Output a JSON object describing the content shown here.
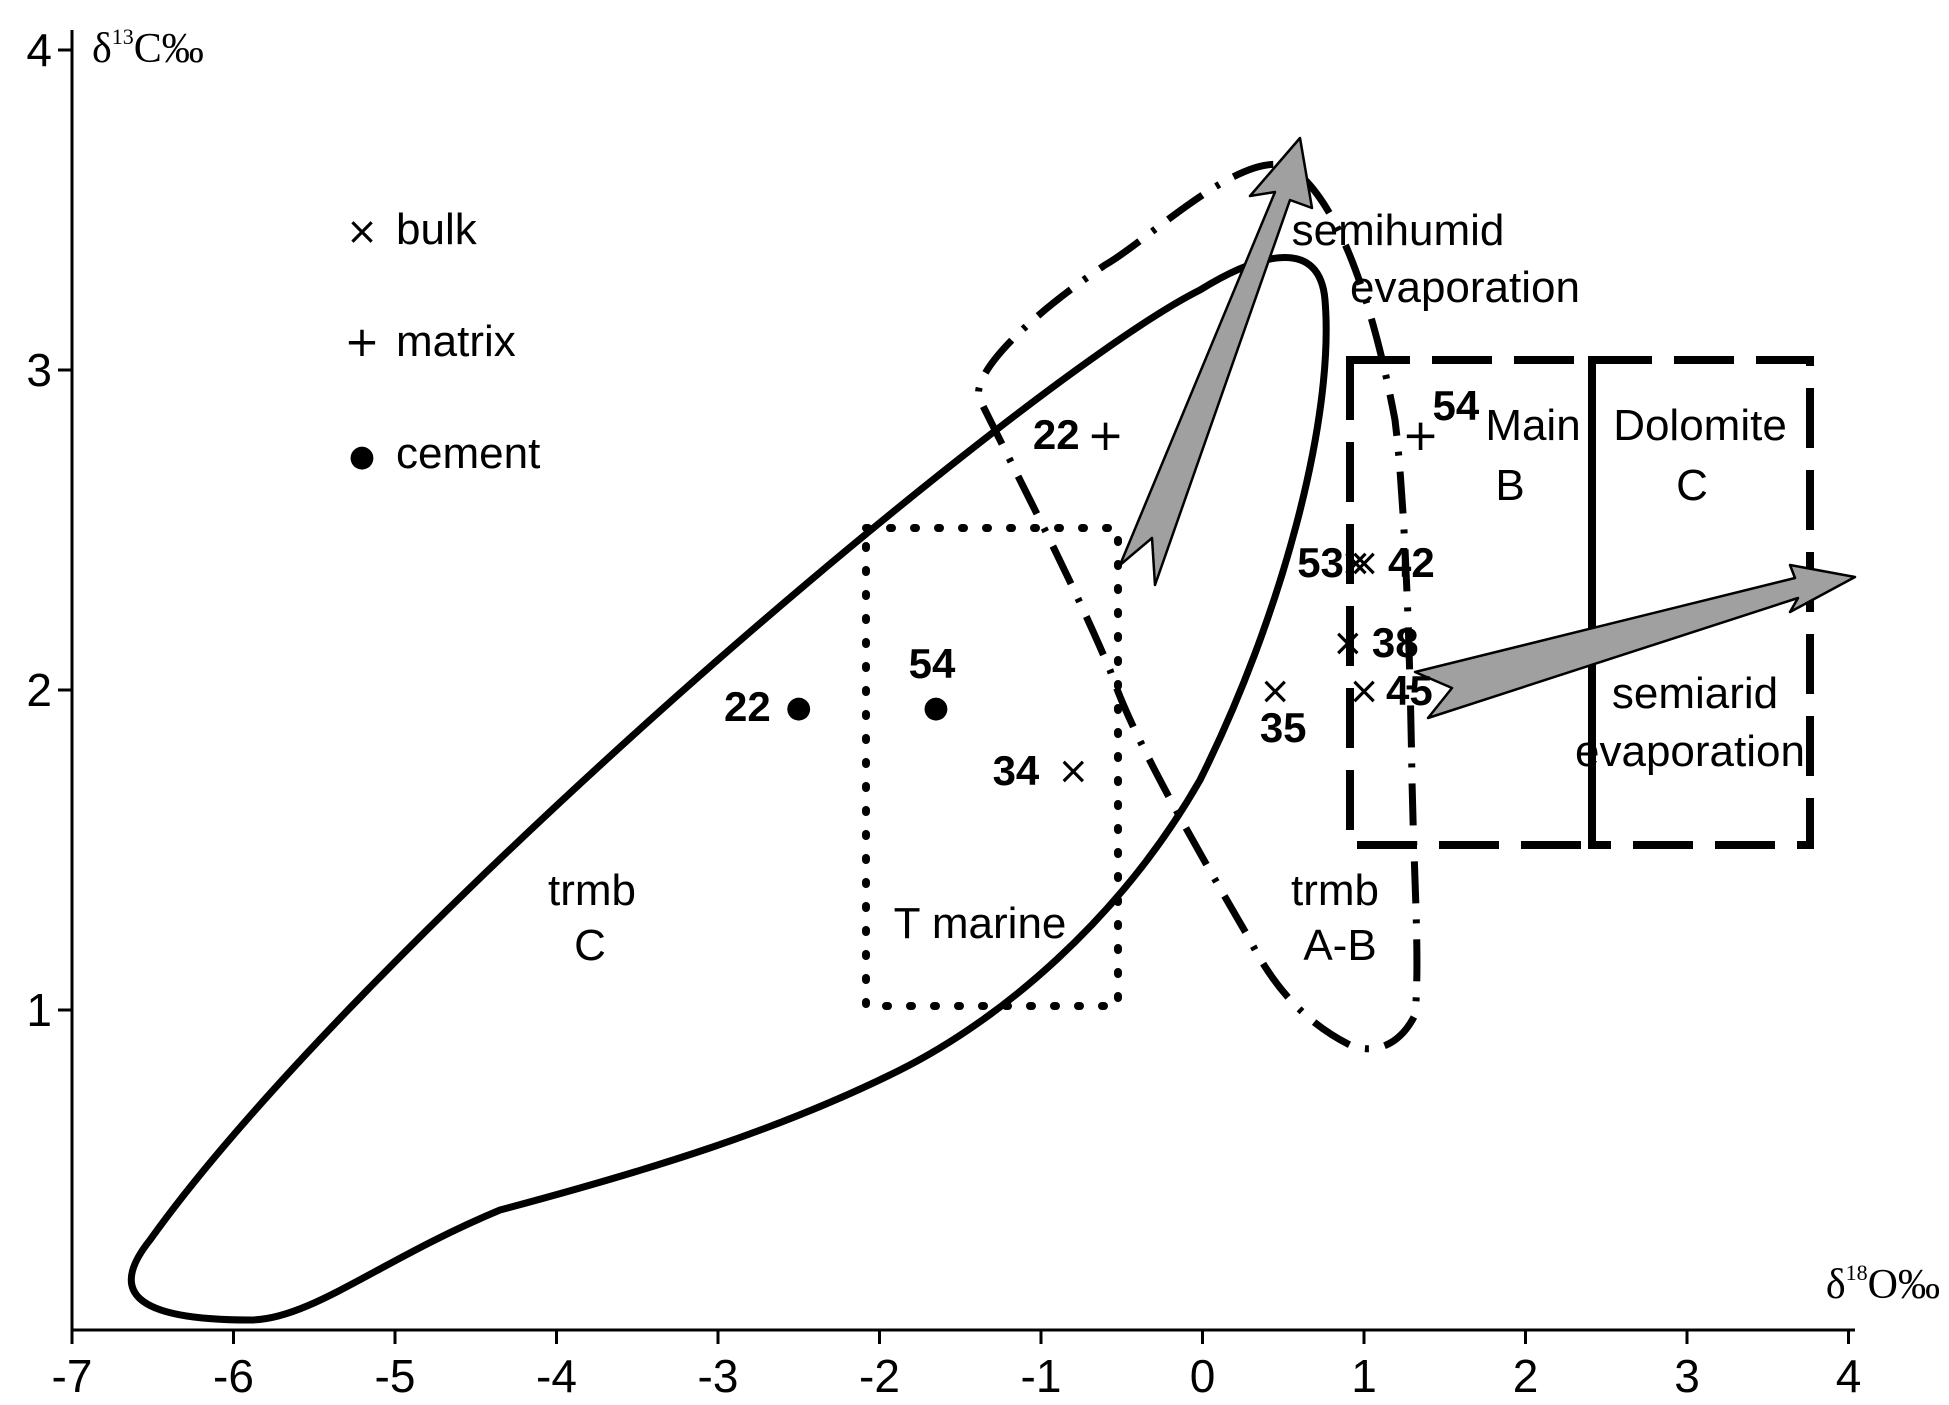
{
  "chart_data": {
    "type": "scatter",
    "title": "",
    "xlabel": "δ¹⁸O‰",
    "ylabel": "δ¹³C‰",
    "xlim": [
      -7,
      4
    ],
    "ylim": [
      0,
      4
    ],
    "x_ticks": [
      "-7",
      "-6",
      "-5",
      "-4",
      "-3",
      "-2",
      "-1",
      "0",
      "1",
      "2",
      "3",
      "4"
    ],
    "y_ticks": [
      "1",
      "2",
      "3",
      "4"
    ],
    "grid": false,
    "legend": [
      {
        "symbol": "×",
        "label": "bulk",
        "key": "bulk"
      },
      {
        "symbol": "+",
        "label": "matrix",
        "key": "matrix"
      },
      {
        "symbol": "●",
        "label": "cement",
        "key": "cement"
      }
    ],
    "series": [
      {
        "name": "bulk",
        "marker": "×",
        "points": [
          {
            "x": -0.8,
            "y": 1.75,
            "label": "34"
          },
          {
            "x": 0.45,
            "y": 2.0,
            "label": "35"
          },
          {
            "x": 0.95,
            "y": 2.4,
            "label": "53"
          },
          {
            "x": 1.0,
            "y": 2.4,
            "label": "42"
          },
          {
            "x": 0.9,
            "y": 2.15,
            "label": "38"
          },
          {
            "x": 1.0,
            "y": 2.0,
            "label": "45"
          }
        ]
      },
      {
        "name": "matrix",
        "marker": "+",
        "points": [
          {
            "x": -0.6,
            "y": 2.8,
            "label": "22"
          },
          {
            "x": 1.35,
            "y": 2.8,
            "label": "54"
          }
        ]
      },
      {
        "name": "cement",
        "marker": "●",
        "points": [
          {
            "x": -2.5,
            "y": 1.95,
            "label": "22"
          },
          {
            "x": -1.65,
            "y": 1.95,
            "label": "54"
          }
        ]
      }
    ],
    "regions": {
      "trmb_c": [
        "trmb",
        "C"
      ],
      "t_marine": [
        "T marine"
      ],
      "trmb_ab": [
        "trmb",
        "A-B"
      ],
      "main_dolomite": [
        "Main",
        "Dolomite"
      ],
      "main_b": [
        "B"
      ],
      "main_c": [
        "C"
      ],
      "semihumid": [
        "semihumid",
        "evaporation"
      ],
      "semiarid": [
        "semiarid",
        "evaporation"
      ]
    }
  }
}
